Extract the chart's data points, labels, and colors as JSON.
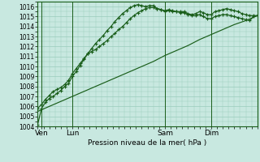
{
  "background_color": "#c8e8e0",
  "grid_color": "#99ccbb",
  "line_color": "#1a5e1a",
  "xlabel": "Pression niveau de la mer( hPa )",
  "ylim": [
    1004,
    1016.5
  ],
  "yticks": [
    1004,
    1005,
    1006,
    1007,
    1008,
    1009,
    1010,
    1011,
    1012,
    1013,
    1014,
    1015,
    1016
  ],
  "xlim": [
    0,
    114
  ],
  "xtick_labels": [
    "Ven",
    "Lun",
    "Sam",
    "Dim"
  ],
  "xtick_positions": [
    2,
    18,
    66,
    90
  ],
  "vlines": [
    2,
    18,
    66,
    90
  ],
  "series1_x": [
    0,
    2,
    4,
    6,
    8,
    10,
    12,
    14,
    16,
    18,
    20,
    22,
    24,
    26,
    28,
    30,
    32,
    34,
    36,
    38,
    40,
    42,
    44,
    46,
    48,
    50,
    52,
    54,
    56,
    58,
    60,
    62,
    64,
    66,
    68,
    70,
    72,
    74,
    76,
    78,
    80,
    82,
    84,
    86,
    88,
    90,
    92,
    94,
    96,
    98,
    100,
    102,
    104,
    106,
    108,
    110,
    112,
    114
  ],
  "series1_y": [
    1004.2,
    1005.8,
    1006.4,
    1006.8,
    1007.0,
    1007.3,
    1007.6,
    1008.0,
    1008.3,
    1009.0,
    1009.5,
    1010.1,
    1010.7,
    1011.3,
    1011.8,
    1012.3,
    1012.7,
    1013.1,
    1013.6,
    1014.0,
    1014.5,
    1014.9,
    1015.3,
    1015.6,
    1015.9,
    1016.1,
    1016.2,
    1016.1,
    1016.0,
    1016.1,
    1016.1,
    1015.8,
    1015.7,
    1015.6,
    1015.7,
    1015.6,
    1015.5,
    1015.5,
    1015.5,
    1015.3,
    1015.2,
    1015.3,
    1015.5,
    1015.4,
    1015.2,
    1015.2,
    1015.5,
    1015.6,
    1015.7,
    1015.8,
    1015.7,
    1015.6,
    1015.5,
    1015.3,
    1015.2,
    1015.1,
    1015.1,
    1015.1
  ],
  "series2_x": [
    0,
    2,
    4,
    6,
    8,
    10,
    12,
    14,
    16,
    18,
    20,
    22,
    24,
    26,
    28,
    30,
    32,
    34,
    36,
    38,
    40,
    42,
    44,
    46,
    48,
    50,
    52,
    54,
    56,
    58,
    60,
    62,
    64,
    66,
    68,
    70,
    72,
    74,
    76,
    78,
    80,
    82,
    84,
    86,
    88,
    90,
    92,
    94,
    96,
    98,
    100,
    102,
    104,
    106,
    108,
    110,
    112,
    114
  ],
  "series2_y": [
    1005.8,
    1006.2,
    1006.7,
    1007.1,
    1007.5,
    1007.7,
    1007.9,
    1008.2,
    1008.6,
    1009.3,
    1009.8,
    1010.3,
    1010.8,
    1011.3,
    1011.5,
    1011.7,
    1012.0,
    1012.3,
    1012.6,
    1013.0,
    1013.3,
    1013.7,
    1014.0,
    1014.4,
    1014.8,
    1015.1,
    1015.4,
    1015.6,
    1015.8,
    1015.9,
    1015.9,
    1015.8,
    1015.7,
    1015.5,
    1015.6,
    1015.5,
    1015.5,
    1015.4,
    1015.4,
    1015.2,
    1015.1,
    1015.1,
    1015.2,
    1015.0,
    1014.8,
    1014.8,
    1015.0,
    1015.1,
    1015.2,
    1015.2,
    1015.1,
    1015.0,
    1014.9,
    1014.8,
    1014.7,
    1014.6,
    1015.0,
    1015.1
  ],
  "series3_x": [
    0,
    6,
    12,
    18,
    24,
    30,
    36,
    42,
    48,
    54,
    60,
    66,
    72,
    78,
    84,
    90,
    96,
    102,
    108,
    114
  ],
  "series3_y": [
    1005.5,
    1006.0,
    1006.5,
    1007.0,
    1007.5,
    1008.0,
    1008.5,
    1009.0,
    1009.5,
    1010.0,
    1010.5,
    1011.1,
    1011.6,
    1012.1,
    1012.7,
    1013.2,
    1013.7,
    1014.2,
    1014.6,
    1015.1
  ],
  "ylabel_fontsize": 6.5,
  "ytick_fontsize": 5.5,
  "xtick_fontsize": 6.5
}
